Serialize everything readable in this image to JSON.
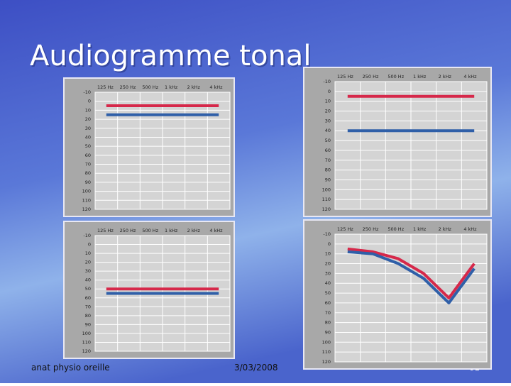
{
  "slide": {
    "title": "Audiogramme tonal",
    "footer_left": "anat physio oreille",
    "footer_date": "3/03/2008",
    "page_number": "61"
  },
  "chart_data": [
    {
      "type": "line",
      "categories": [
        "125 Hz",
        "250 Hz",
        "500 Hz",
        "1 kHz",
        "2 kHz",
        "4 kHz"
      ],
      "series": [
        {
          "color": "#d6284a",
          "values": [
            5,
            5,
            5,
            5,
            5,
            5
          ]
        },
        {
          "color": "#2f5fa8",
          "values": [
            15,
            15,
            15,
            15,
            15,
            15
          ]
        }
      ],
      "ylim": [
        -10,
        120
      ],
      "yticks": [
        -10,
        0,
        10,
        20,
        30,
        40,
        50,
        60,
        70,
        80,
        90,
        100,
        110,
        120
      ],
      "y_inverted": true,
      "grid": true
    },
    {
      "type": "line",
      "categories": [
        "125 Hz",
        "250 Hz",
        "500 Hz",
        "1 kHz",
        "2 kHz",
        "4 kHz"
      ],
      "series": [
        {
          "color": "#d6284a",
          "values": [
            5,
            5,
            5,
            5,
            5,
            5
          ]
        },
        {
          "color": "#2f5fa8",
          "values": [
            40,
            40,
            40,
            40,
            40,
            40
          ]
        }
      ],
      "ylim": [
        -10,
        120
      ],
      "yticks": [
        -10,
        0,
        10,
        20,
        30,
        40,
        50,
        60,
        70,
        80,
        90,
        100,
        110,
        120
      ],
      "y_inverted": true,
      "grid": true
    },
    {
      "type": "line",
      "categories": [
        "125 Hz",
        "250 Hz",
        "500 Hz",
        "1 kHz",
        "2 kHz",
        "4 kHz"
      ],
      "series": [
        {
          "color": "#d6284a",
          "values": [
            50,
            50,
            50,
            50,
            50,
            50
          ]
        },
        {
          "color": "#2f5fa8",
          "values": [
            55,
            55,
            55,
            55,
            55,
            55
          ]
        }
      ],
      "ylim": [
        -10,
        120
      ],
      "yticks": [
        -10,
        0,
        10,
        20,
        30,
        40,
        50,
        60,
        70,
        80,
        90,
        100,
        110,
        120
      ],
      "y_inverted": true,
      "grid": true
    },
    {
      "type": "line",
      "categories": [
        "125 Hz",
        "250 Hz",
        "500 Hz",
        "1 kHz",
        "2 kHz",
        "4 kHz"
      ],
      "series": [
        {
          "color": "#d6284a",
          "values": [
            5,
            8,
            15,
            30,
            55,
            20
          ]
        },
        {
          "color": "#2f5fa8",
          "values": [
            8,
            10,
            20,
            35,
            60,
            25
          ]
        }
      ],
      "ylim": [
        -10,
        120
      ],
      "yticks": [
        -10,
        0,
        10,
        20,
        30,
        40,
        50,
        60,
        70,
        80,
        90,
        100,
        110,
        120
      ],
      "y_inverted": true,
      "grid": true
    }
  ]
}
